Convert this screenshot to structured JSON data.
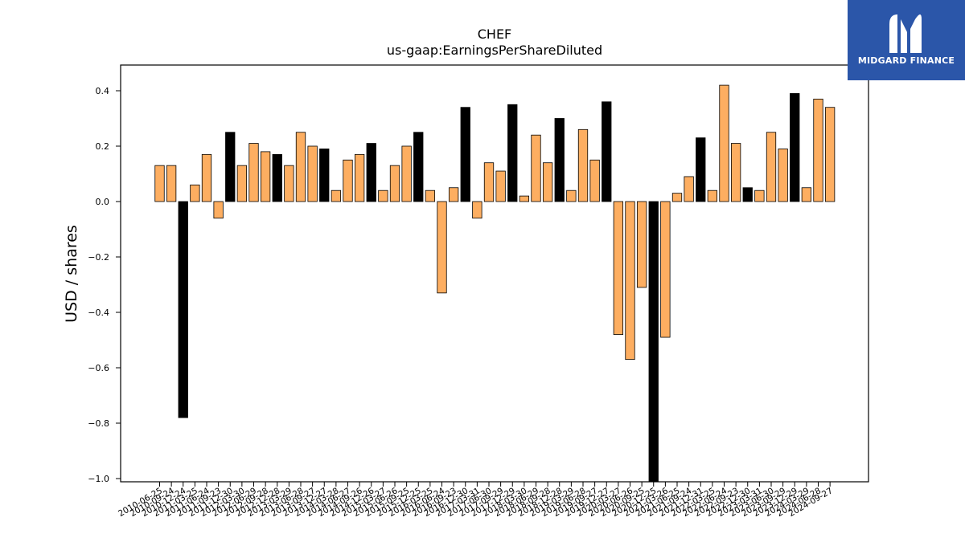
{
  "brand": {
    "name": "MIDGARD FINANCE",
    "logo_icon": "midgard-m-logo-icon",
    "bg_color": "#2b56a9"
  },
  "chart_data": {
    "type": "bar",
    "title": "CHEF",
    "subtitle": "us-gaap:EarningsPerShareDiluted",
    "xlabel": "",
    "ylabel": "USD / shares",
    "ylim": [
      -1.01,
      0.49
    ],
    "yticks": [
      0.4,
      0.2,
      0.0,
      -0.2,
      -0.4,
      -0.6,
      -0.8,
      -1.0
    ],
    "ytick_labels": [
      "0.4",
      "0.2",
      "0.0",
      "−0.2",
      "−0.4",
      "−0.6",
      "−0.8",
      "−1.0"
    ],
    "grid": false,
    "colors": {
      "quarter": "#fdae61",
      "annual": "#000000",
      "edge": "#000000"
    },
    "categories": [
      "2010-06-25",
      "2010-09-24",
      "2010-12-24",
      "2011-03-25",
      "2011-06-24",
      "2011-09-23",
      "2011-12-30",
      "2012-03-30",
      "2012-06-29",
      "2012-09-28",
      "2012-12-28",
      "2013-03-29",
      "2013-06-28",
      "2013-09-27",
      "2013-12-27",
      "2014-03-28",
      "2014-06-27",
      "2014-09-26",
      "2014-12-26",
      "2015-03-27",
      "2015-06-26",
      "2015-09-25",
      "2015-12-25",
      "2016-03-25",
      "2016-06-24",
      "2016-09-23",
      "2016-12-30",
      "2017-03-31",
      "2017-06-30",
      "2017-09-29",
      "2017-12-29",
      "2018-03-30",
      "2018-06-29",
      "2018-09-28",
      "2018-12-28",
      "2019-03-29",
      "2019-06-28",
      "2019-09-27",
      "2019-12-27",
      "2020-03-27",
      "2020-06-26",
      "2020-09-25",
      "2020-12-25",
      "2021-03-26",
      "2021-06-25",
      "2021-09-24",
      "2021-12-31",
      "2022-03-25",
      "2022-06-24",
      "2022-09-23",
      "2022-12-30",
      "2023-03-31",
      "2023-06-30",
      "2023-09-29",
      "2023-12-29",
      "2024-03-29",
      "2024-06-28",
      "2024-09-27"
    ],
    "values": [
      0.13,
      0.13,
      -0.78,
      0.06,
      0.17,
      -0.06,
      0.25,
      0.13,
      0.21,
      0.18,
      0.17,
      0.13,
      0.25,
      0.2,
      0.19,
      0.04,
      0.15,
      0.17,
      0.21,
      0.04,
      0.13,
      0.2,
      0.25,
      0.04,
      -0.33,
      0.05,
      0.34,
      -0.06,
      0.14,
      0.11,
      0.35,
      0.02,
      0.24,
      0.14,
      0.3,
      0.04,
      0.26,
      0.15,
      0.36,
      -0.48,
      -0.57,
      -0.31,
      -1.04,
      -0.49,
      0.03,
      0.09,
      0.23,
      0.04,
      0.42,
      0.21,
      0.05,
      0.04,
      0.25,
      0.19,
      0.39,
      0.05,
      0.37,
      0.34
    ],
    "annual": [
      false,
      false,
      true,
      false,
      false,
      false,
      true,
      false,
      false,
      false,
      true,
      false,
      false,
      false,
      true,
      false,
      false,
      false,
      true,
      false,
      false,
      false,
      true,
      false,
      false,
      false,
      true,
      false,
      false,
      false,
      true,
      false,
      false,
      false,
      true,
      false,
      false,
      false,
      true,
      false,
      false,
      false,
      true,
      false,
      false,
      false,
      true,
      false,
      false,
      false,
      true,
      false,
      false,
      false,
      true,
      false,
      false,
      false
    ]
  }
}
